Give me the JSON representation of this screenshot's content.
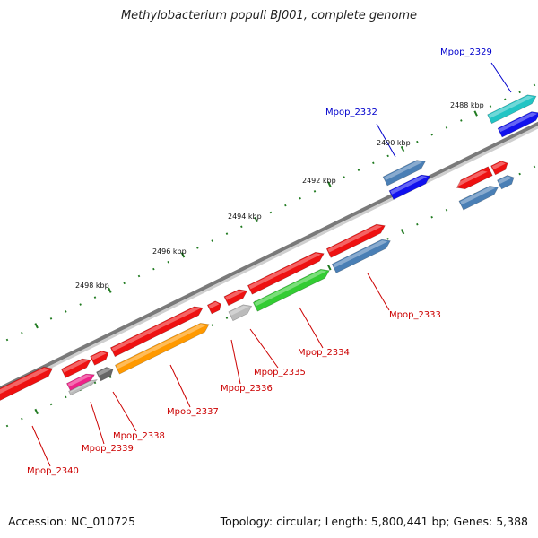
{
  "title": "Methylobacterium populi BJ001, complete genome",
  "footer": {
    "accession": "Accession: NC_010725",
    "summary": "Topology: circular; Length: 5,800,441 bp; Genes: 5,388"
  },
  "colors": {
    "backbone": "#7a7a7a",
    "tick": "#1f7a1f",
    "label_red": "#cc0000",
    "label_blue": "#0000cc",
    "red": "#ee1111",
    "steelblue": "#4a7fb5",
    "blue": "#1111ee",
    "cyan": "#22c4c4",
    "green": "#33cc33",
    "orange": "#ff9900",
    "gray": "#bbbbbb",
    "darkgray": "#666666",
    "magenta": "#ee2288"
  },
  "scale_labels": [
    "2488 kbp",
    "2490 kbp",
    "2492 kbp",
    "2494 kbp",
    "2496 kbp",
    "2498 kbp"
  ],
  "gene_labels": [
    {
      "name": "Mpop_2329",
      "strand": "upper"
    },
    {
      "name": "Mpop_2332",
      "strand": "upper"
    },
    {
      "name": "Mpop_2333",
      "strand": "lower"
    },
    {
      "name": "Mpop_2334",
      "strand": "lower"
    },
    {
      "name": "Mpop_2335",
      "strand": "lower"
    },
    {
      "name": "Mpop_2336",
      "strand": "lower"
    },
    {
      "name": "Mpop_2337",
      "strand": "lower"
    },
    {
      "name": "Mpop_2338",
      "strand": "lower"
    },
    {
      "name": "Mpop_2339",
      "strand": "lower"
    },
    {
      "name": "Mpop_2340",
      "strand": "lower"
    }
  ],
  "features": [
    {
      "color": "cyan"
    },
    {
      "color": "blue"
    },
    {
      "color": "steelblue"
    },
    {
      "color": "blue"
    },
    {
      "color": "red"
    },
    {
      "color": "red"
    },
    {
      "color": "steelblue"
    },
    {
      "color": "steelblue"
    },
    {
      "color": "red"
    },
    {
      "color": "steelblue"
    },
    {
      "color": "red"
    },
    {
      "color": "green"
    },
    {
      "color": "red"
    },
    {
      "color": "gray"
    },
    {
      "color": "red"
    },
    {
      "color": "red"
    },
    {
      "color": "orange"
    },
    {
      "color": "red"
    },
    {
      "color": "darkgray"
    },
    {
      "color": "red"
    },
    {
      "color": "magenta"
    },
    {
      "color": "gray"
    },
    {
      "color": "red"
    }
  ]
}
